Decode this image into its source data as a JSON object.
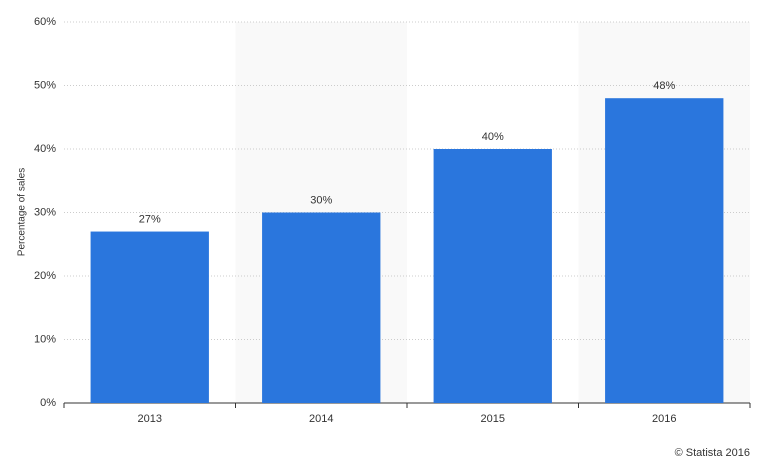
{
  "chart_data": {
    "type": "bar",
    "y_label": "Percentage of sales",
    "categories": [
      "2013",
      "2014",
      "2015",
      "2016"
    ],
    "values": [
      27,
      30,
      40,
      48
    ],
    "value_labels": [
      "27%",
      "30%",
      "40%",
      "48%"
    ],
    "color": "#2a76dd",
    "ylim": [
      0,
      60
    ],
    "yticks": [
      {
        "value": 0,
        "label": "0%"
      },
      {
        "value": 10,
        "label": "10%"
      },
      {
        "value": 20,
        "label": "20%"
      },
      {
        "value": 30,
        "label": "30%"
      },
      {
        "value": 40,
        "label": "40%"
      },
      {
        "value": 50,
        "label": "50%"
      },
      {
        "value": 60,
        "label": "60%"
      }
    ],
    "grid": true,
    "credit": "© Statista 2016"
  }
}
